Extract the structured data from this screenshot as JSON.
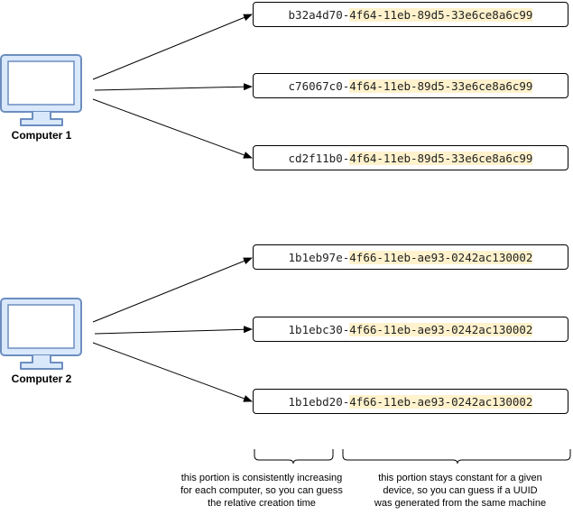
{
  "computers": [
    {
      "label": "Computer 1"
    },
    {
      "label": "Computer 2"
    }
  ],
  "uuids": [
    {
      "prefix": "b32a4d70-",
      "suffix": "4f64-11eb-89d5-33e6ce8a6c99"
    },
    {
      "prefix": "c76067c0-",
      "suffix": "4f64-11eb-89d5-33e6ce8a6c99"
    },
    {
      "prefix": "cd2f11b0-",
      "suffix": "4f64-11eb-89d5-33e6ce8a6c99"
    },
    {
      "prefix": "1b1eb97e-",
      "suffix": "4f66-11eb-ae93-0242ac130002"
    },
    {
      "prefix": "1b1ebc30-",
      "suffix": "4f66-11eb-ae93-0242ac130002"
    },
    {
      "prefix": "1b1ebd20-",
      "suffix": "4f66-11eb-ae93-0242ac130002"
    }
  ],
  "annotations": {
    "left": [
      "this portion is consistently increasing",
      "for each computer, so you can guess",
      "the relative creation time"
    ],
    "right": [
      "this portion stays constant for a given",
      "device, so you can guess if a UUID",
      "was generated from the same machine"
    ]
  },
  "colors": {
    "monitor_fill": "#dae8fc",
    "monitor_stroke": "#6c8ebf",
    "highlight": "#fff2cc"
  }
}
